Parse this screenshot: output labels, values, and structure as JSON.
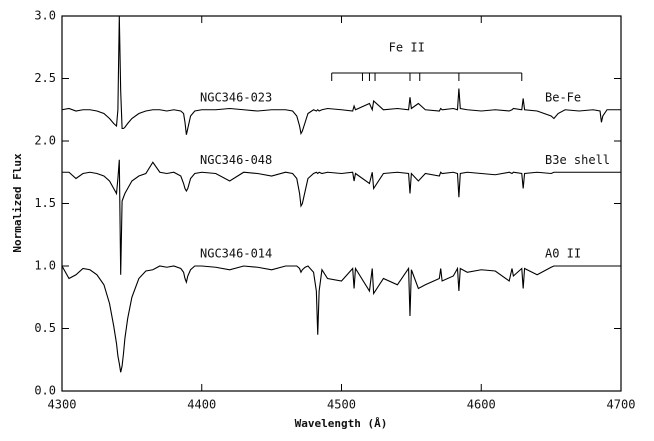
{
  "chart_data": {
    "type": "line",
    "x_label": "Wavelength (Å)",
    "y_label": "Normalized Flux",
    "x": [
      4300,
      4305,
      4310,
      4315,
      4320,
      4325,
      4330,
      4334,
      4337,
      4339,
      4340,
      4341,
      4342,
      4343,
      4344,
      4345,
      4347,
      4350,
      4355,
      4360,
      4365,
      4370,
      4375,
      4380,
      4385,
      4387,
      4388,
      4389,
      4390,
      4392,
      4395,
      4400,
      4410,
      4420,
      4430,
      4440,
      4450,
      4460,
      4465,
      4468,
      4470,
      4471,
      4472,
      4474,
      4476,
      4480,
      4482,
      4483,
      4484,
      4486,
      4490,
      4500,
      4508,
      4509,
      4510,
      4520,
      4522,
      4523,
      4530,
      4540,
      4548,
      4549,
      4550,
      4555,
      4560,
      4570,
      4571,
      4572,
      4580,
      4583,
      4584,
      4585,
      4590,
      4600,
      4610,
      4620,
      4622,
      4623,
      4629,
      4630,
      4631,
      4640,
      4650,
      4652,
      4655,
      4660,
      4670,
      4680,
      4685,
      4686,
      4687,
      4690,
      4700
    ],
    "series": [
      {
        "name": "NGC346-023",
        "spectral_type": "Be-Fe",
        "color": "#000000",
        "values": [
          2.25,
          2.26,
          2.24,
          2.25,
          2.25,
          2.24,
          2.22,
          2.18,
          2.14,
          2.12,
          2.25,
          3.0,
          2.4,
          2.1,
          2.1,
          2.11,
          2.14,
          2.18,
          2.22,
          2.24,
          2.25,
          2.25,
          2.24,
          2.25,
          2.24,
          2.22,
          2.15,
          2.05,
          2.1,
          2.2,
          2.24,
          2.25,
          2.25,
          2.26,
          2.25,
          2.24,
          2.25,
          2.25,
          2.24,
          2.2,
          2.12,
          2.06,
          2.08,
          2.15,
          2.22,
          2.25,
          2.24,
          2.25,
          2.24,
          2.25,
          2.26,
          2.25,
          2.24,
          2.28,
          2.25,
          2.3,
          2.25,
          2.32,
          2.25,
          2.26,
          2.25,
          2.35,
          2.26,
          2.3,
          2.25,
          2.24,
          2.26,
          2.25,
          2.26,
          2.25,
          2.42,
          2.26,
          2.25,
          2.24,
          2.25,
          2.24,
          2.25,
          2.26,
          2.25,
          2.34,
          2.25,
          2.24,
          2.2,
          2.18,
          2.22,
          2.25,
          2.24,
          2.25,
          2.24,
          2.15,
          2.2,
          2.25,
          2.25
        ]
      },
      {
        "name": "NGC346-048",
        "spectral_type": "B3e shell",
        "color": "#000000",
        "values": [
          1.75,
          1.75,
          1.7,
          1.74,
          1.75,
          1.74,
          1.72,
          1.68,
          1.62,
          1.58,
          1.7,
          1.85,
          0.93,
          1.52,
          1.55,
          1.58,
          1.62,
          1.68,
          1.72,
          1.74,
          1.83,
          1.75,
          1.74,
          1.75,
          1.72,
          1.66,
          1.62,
          1.6,
          1.62,
          1.7,
          1.74,
          1.75,
          1.74,
          1.68,
          1.75,
          1.74,
          1.72,
          1.75,
          1.74,
          1.7,
          1.58,
          1.48,
          1.5,
          1.6,
          1.7,
          1.74,
          1.75,
          1.74,
          1.75,
          1.74,
          1.75,
          1.74,
          1.75,
          1.68,
          1.74,
          1.66,
          1.75,
          1.62,
          1.74,
          1.75,
          1.74,
          1.58,
          1.74,
          1.68,
          1.74,
          1.72,
          1.75,
          1.74,
          1.75,
          1.74,
          1.55,
          1.74,
          1.75,
          1.74,
          1.73,
          1.75,
          1.74,
          1.75,
          1.74,
          1.62,
          1.74,
          1.75,
          1.74,
          1.75,
          1.75,
          1.75,
          1.75,
          1.75,
          1.75,
          1.75,
          1.75,
          1.75,
          1.75
        ]
      },
      {
        "name": "NGC346-014",
        "spectral_type": "A0 II",
        "color": "#000000",
        "values": [
          1.0,
          0.9,
          0.93,
          0.98,
          0.97,
          0.93,
          0.85,
          0.7,
          0.52,
          0.38,
          0.28,
          0.22,
          0.15,
          0.2,
          0.3,
          0.42,
          0.58,
          0.75,
          0.9,
          0.96,
          0.97,
          1.0,
          0.99,
          1.0,
          0.98,
          0.95,
          0.9,
          0.87,
          0.92,
          0.97,
          1.0,
          1.0,
          0.99,
          0.97,
          1.0,
          0.99,
          0.97,
          1.0,
          1.0,
          1.0,
          0.98,
          0.95,
          0.97,
          0.99,
          1.0,
          0.95,
          0.8,
          0.45,
          0.8,
          0.97,
          0.9,
          0.88,
          0.98,
          0.82,
          0.98,
          0.8,
          0.98,
          0.78,
          0.9,
          0.85,
          0.98,
          0.6,
          0.97,
          0.82,
          0.85,
          0.9,
          0.98,
          0.88,
          0.92,
          0.98,
          0.8,
          0.98,
          0.95,
          0.97,
          0.96,
          0.88,
          0.98,
          0.92,
          0.98,
          0.82,
          0.98,
          0.93,
          0.99,
          1.0,
          1.0,
          1.0,
          1.0,
          1.0,
          1.0,
          1.0,
          1.0,
          1.0,
          1.0
        ]
      }
    ],
    "annotations": [
      {
        "text": "Fe II",
        "lines": [
          4493,
          4515,
          4520,
          4524,
          4549,
          4556,
          4584,
          4629
        ]
      }
    ],
    "xlim": [
      4300,
      4700
    ],
    "xticks": [
      4300,
      4400,
      4500,
      4600,
      4700
    ],
    "ylim": [
      0,
      3
    ],
    "yticks": [
      {
        "value": 0,
        "label": "0.0"
      },
      0.5,
      {
        "value": 1,
        "label": "1.0"
      },
      1.5,
      {
        "value": 2,
        "label": "2.0"
      },
      2.5,
      {
        "value": 3,
        "label": "3.0"
      }
    ]
  }
}
